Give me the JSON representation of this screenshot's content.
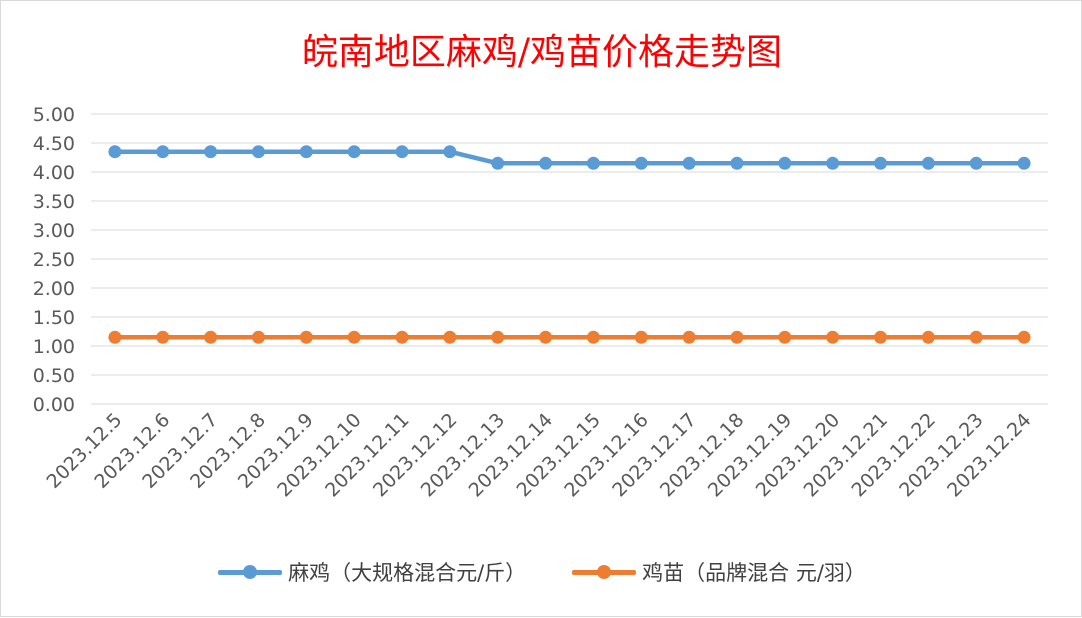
{
  "chart_data": {
    "type": "line",
    "title": "皖南地区麻鸡/鸡苗价格走势图",
    "xlabel": "",
    "ylabel": "",
    "ylim": [
      0,
      5
    ],
    "y_ticks": [
      "0.00",
      "0.50",
      "1.00",
      "1.50",
      "2.00",
      "2.50",
      "3.00",
      "3.50",
      "4.00",
      "4.50",
      "5.00"
    ],
    "grid": true,
    "legend_position": "bottom",
    "categories": [
      "2023.12.5",
      "2023.12.6",
      "2023.12.7",
      "2023.12.8",
      "2023.12.9",
      "2023.12.10",
      "2023.12.11",
      "2023.12.12",
      "2023.12.13",
      "2023.12.14",
      "2023.12.15",
      "2023.12.16",
      "2023.12.17",
      "2023.12.18",
      "2023.12.19",
      "2023.12.20",
      "2023.12.21",
      "2023.12.22",
      "2023.12.23",
      "2023.12.24"
    ],
    "series": [
      {
        "name": "麻鸡（大规格混合元/斤）",
        "color": "#5b9bd5",
        "values": [
          4.35,
          4.35,
          4.35,
          4.35,
          4.35,
          4.35,
          4.35,
          4.35,
          4.15,
          4.15,
          4.15,
          4.15,
          4.15,
          4.15,
          4.15,
          4.15,
          4.15,
          4.15,
          4.15,
          4.15
        ]
      },
      {
        "name": "鸡苗（品牌混合 元/羽）",
        "color": "#ed7d31",
        "values": [
          1.15,
          1.15,
          1.15,
          1.15,
          1.15,
          1.15,
          1.15,
          1.15,
          1.15,
          1.15,
          1.15,
          1.15,
          1.15,
          1.15,
          1.15,
          1.15,
          1.15,
          1.15,
          1.15,
          1.15
        ]
      }
    ]
  }
}
